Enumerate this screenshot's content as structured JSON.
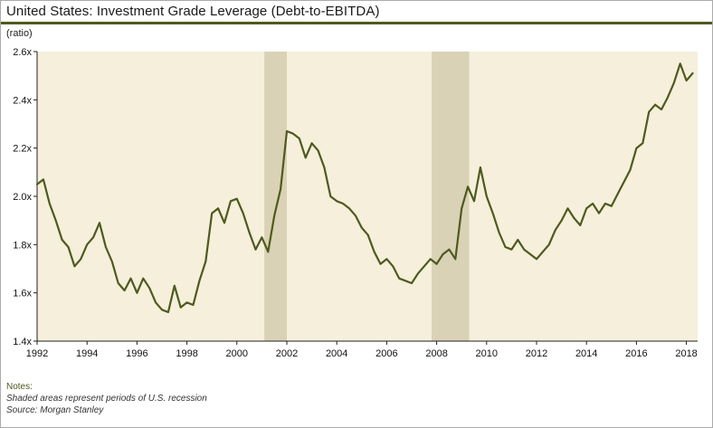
{
  "chart_data": {
    "type": "line",
    "title": "United States: Investment Grade Leverage (Debt-to-EBITDA)",
    "ylabel": "(ratio)",
    "xlabel": "",
    "ylim": [
      1.4,
      2.6
    ],
    "xlim": [
      1992,
      2018.45
    ],
    "grid": false,
    "legend": "none",
    "y_ticks": [
      1.4,
      1.6,
      1.8,
      2.0,
      2.2,
      2.4,
      2.6
    ],
    "y_tick_labels": [
      "1.4x",
      "1.6x",
      "1.8x",
      "2.0x",
      "2.2x",
      "2.4x",
      "2.6x"
    ],
    "x_ticks": [
      1992,
      1994,
      1996,
      1998,
      2000,
      2002,
      2004,
      2006,
      2008,
      2010,
      2012,
      2014,
      2016,
      2018
    ],
    "recession_bands": [
      [
        2001.1,
        2002.0
      ],
      [
        2007.8,
        2009.3
      ]
    ],
    "x_start": 1992,
    "x_step": 0.25,
    "series": [
      {
        "name": "US Investment Grade Leverage (Debt-to-EBITDA)",
        "values": [
          2.05,
          2.07,
          1.97,
          1.9,
          1.82,
          1.79,
          1.71,
          1.74,
          1.8,
          1.83,
          1.89,
          1.79,
          1.73,
          1.64,
          1.61,
          1.66,
          1.6,
          1.66,
          1.62,
          1.56,
          1.53,
          1.52,
          1.63,
          1.54,
          1.56,
          1.55,
          1.65,
          1.73,
          1.93,
          1.95,
          1.89,
          1.98,
          1.99,
          1.93,
          1.85,
          1.78,
          1.83,
          1.77,
          1.92,
          2.03,
          2.27,
          2.26,
          2.24,
          2.16,
          2.22,
          2.19,
          2.12,
          2.0,
          1.98,
          1.97,
          1.95,
          1.92,
          1.87,
          1.84,
          1.77,
          1.72,
          1.74,
          1.71,
          1.66,
          1.65,
          1.64,
          1.68,
          1.71,
          1.74,
          1.72,
          1.76,
          1.78,
          1.74,
          1.95,
          2.04,
          1.98,
          2.12,
          2.0,
          1.93,
          1.85,
          1.79,
          1.78,
          1.82,
          1.78,
          1.76,
          1.74,
          1.77,
          1.8,
          1.86,
          1.9,
          1.95,
          1.91,
          1.88,
          1.95,
          1.97,
          1.93,
          1.97,
          1.96,
          2.01,
          2.06,
          2.11,
          2.2,
          2.22,
          2.35,
          2.38,
          2.36,
          2.41,
          2.47,
          2.55,
          2.48,
          2.51
        ]
      }
    ],
    "colors": {
      "line": "#4e5a1d",
      "plot_background": "#f5efdc",
      "recession_band": "#d9d2b6",
      "axis": "#222222",
      "accent_rule": "#4e5a1d"
    }
  },
  "footer": {
    "notes_label": "Notes:",
    "note": "Shaded areas represent periods of U.S. recession",
    "source": "Source: Morgan Stanley"
  }
}
